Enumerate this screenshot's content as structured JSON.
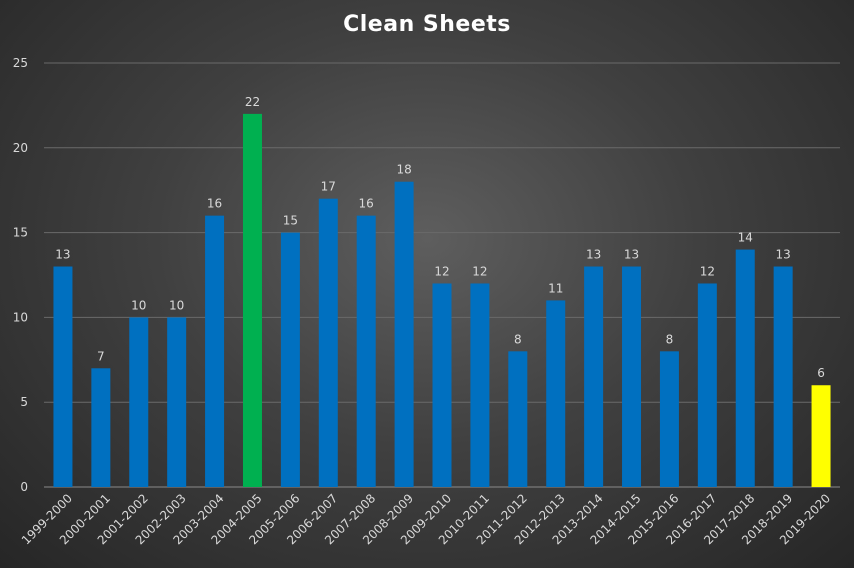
{
  "chart_data": {
    "type": "bar",
    "title": "Clean Sheets",
    "xlabel": "",
    "ylabel": "",
    "ylim": [
      0,
      25
    ],
    "yticks": [
      0,
      5,
      10,
      15,
      20,
      25
    ],
    "grid": true,
    "legend": "none",
    "categories": [
      "1999-2000",
      "2000-2001",
      "2001-2002",
      "2002-2003",
      "2003-2004",
      "2004-2005",
      "2005-2006",
      "2006-2007",
      "2007-2008",
      "2008-2009",
      "2009-2010",
      "2010-2011",
      "2011-2012",
      "2012-2013",
      "2013-2014",
      "2014-2015",
      "2015-2016",
      "2016-2017",
      "2017-2018",
      "2018-2019",
      "2019-2020"
    ],
    "values": [
      13,
      7,
      10,
      10,
      16,
      22,
      15,
      17,
      16,
      18,
      12,
      12,
      8,
      11,
      13,
      13,
      8,
      12,
      14,
      13,
      6
    ],
    "colors": {
      "default": "#0070c0",
      "highlight_max": "#00b050",
      "highlight_current": "#ffff00"
    },
    "bar_colors": [
      "default",
      "default",
      "default",
      "default",
      "default",
      "highlight_max",
      "default",
      "default",
      "default",
      "default",
      "default",
      "default",
      "default",
      "default",
      "default",
      "default",
      "default",
      "default",
      "default",
      "default",
      "highlight_current"
    ]
  }
}
